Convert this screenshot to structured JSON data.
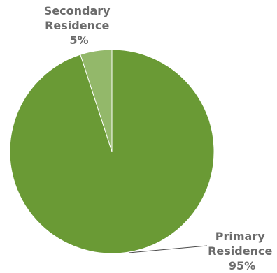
{
  "chart_data": {
    "type": "pie",
    "slices": [
      {
        "label_lines": [
          "Primary",
          "Residence"
        ],
        "percent_text": "95%",
        "value": 95,
        "color": "#6a9a35"
      },
      {
        "label_lines": [
          "Secondary",
          "Residence"
        ],
        "percent_text": "5%",
        "value": 5,
        "color": "#93b86a"
      }
    ],
    "label_color": "#6b6b6b",
    "leader_line_color": "#4a4a4a",
    "slice_border_color": "#ffffff",
    "legend": "none"
  }
}
